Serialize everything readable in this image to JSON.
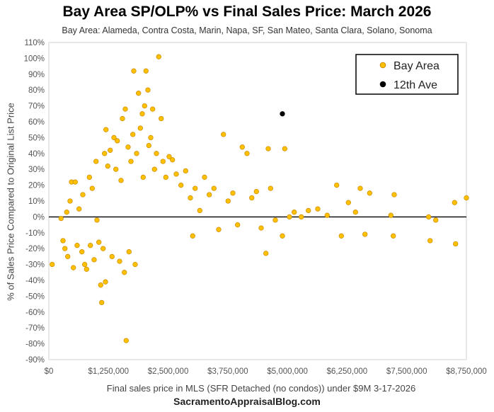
{
  "chart_data": {
    "type": "scatter",
    "title": "Bay Area SP/OLP% vs Final Sales Price: March 2026",
    "subtitle": "Bay Area: Alameda, Contra Costa, Marin, Napa, SF, San Mateo, Santa Clara, Solano, Sonoma",
    "xlabel": "Final sales price in MLS (SFR Detached (no condos)) under $9M 3-17-2026",
    "ylabel": "% of Sales Price Compared to Original List Price",
    "footer": "SacramentoAppraisalBlog.com",
    "xlim": [
      0,
      8850000
    ],
    "ylim": [
      -90,
      110
    ],
    "x_ticks": [
      "$0",
      "$1,250,000",
      "$2,500,000",
      "$3,750,000",
      "$5,000,000",
      "$6,250,000",
      "$7,500,000",
      "$8,750,000"
    ],
    "y_ticks": [
      "110%",
      "100%",
      "90%",
      "80%",
      "70%",
      "60%",
      "50%",
      "40%",
      "30%",
      "20%",
      "10%",
      "0%",
      "-10%",
      "-20%",
      "-30%",
      "-40%",
      "-50%",
      "-60%",
      "-70%",
      "-80%",
      "-90%"
    ],
    "grid": false,
    "zero_line": true,
    "legend_position": "top-right",
    "series": [
      {
        "name": "Bay Area",
        "color": "#FFC000",
        "edge_color": "#C98A00",
        "points": [
          [
            70000,
            -30
          ],
          [
            260000,
            -1
          ],
          [
            300000,
            -15
          ],
          [
            340000,
            -20
          ],
          [
            380000,
            3
          ],
          [
            400000,
            -25
          ],
          [
            450000,
            10
          ],
          [
            480000,
            22
          ],
          [
            520000,
            -32
          ],
          [
            560000,
            22
          ],
          [
            600000,
            -18
          ],
          [
            640000,
            5
          ],
          [
            700000,
            -22
          ],
          [
            720000,
            14
          ],
          [
            760000,
            -30
          ],
          [
            800000,
            -33
          ],
          [
            860000,
            25
          ],
          [
            880000,
            -18
          ],
          [
            920000,
            18
          ],
          [
            960000,
            -27
          ],
          [
            1000000,
            35
          ],
          [
            1020000,
            -2
          ],
          [
            1060000,
            -16
          ],
          [
            1100000,
            -43
          ],
          [
            1120000,
            -54
          ],
          [
            1150000,
            -20
          ],
          [
            1180000,
            40
          ],
          [
            1200000,
            -41
          ],
          [
            1210000,
            55
          ],
          [
            1250000,
            32
          ],
          [
            1300000,
            42
          ],
          [
            1340000,
            -25
          ],
          [
            1380000,
            50
          ],
          [
            1420000,
            30
          ],
          [
            1450000,
            48
          ],
          [
            1500000,
            -28
          ],
          [
            1530000,
            23
          ],
          [
            1560000,
            62
          ],
          [
            1600000,
            -35
          ],
          [
            1620000,
            68
          ],
          [
            1640000,
            -78
          ],
          [
            1680000,
            44
          ],
          [
            1700000,
            -22
          ],
          [
            1740000,
            35
          ],
          [
            1780000,
            52
          ],
          [
            1800000,
            92
          ],
          [
            1830000,
            -30
          ],
          [
            1860000,
            40
          ],
          [
            1900000,
            78
          ],
          [
            1940000,
            56
          ],
          [
            1980000,
            65
          ],
          [
            2000000,
            25
          ],
          [
            2030000,
            70
          ],
          [
            2060000,
            92
          ],
          [
            2100000,
            80
          ],
          [
            2120000,
            45
          ],
          [
            2160000,
            50
          ],
          [
            2200000,
            68
          ],
          [
            2240000,
            30
          ],
          [
            2280000,
            40
          ],
          [
            2330000,
            101
          ],
          [
            2380000,
            62
          ],
          [
            2420000,
            35
          ],
          [
            2480000,
            25
          ],
          [
            2550000,
            38
          ],
          [
            2620000,
            36
          ],
          [
            2700000,
            27
          ],
          [
            2800000,
            20
          ],
          [
            2900000,
            29
          ],
          [
            3000000,
            12
          ],
          [
            3050000,
            -12
          ],
          [
            3100000,
            18
          ],
          [
            3200000,
            4
          ],
          [
            3300000,
            25
          ],
          [
            3400000,
            14
          ],
          [
            3500000,
            18
          ],
          [
            3600000,
            -8
          ],
          [
            3700000,
            52
          ],
          [
            3800000,
            10
          ],
          [
            3900000,
            15
          ],
          [
            4000000,
            -5
          ],
          [
            4100000,
            44
          ],
          [
            4200000,
            40
          ],
          [
            4300000,
            12
          ],
          [
            4400000,
            16
          ],
          [
            4500000,
            -7
          ],
          [
            4600000,
            -23
          ],
          [
            4650000,
            43
          ],
          [
            4700000,
            18
          ],
          [
            4800000,
            -2
          ],
          [
            4950000,
            -12
          ],
          [
            5000000,
            43
          ],
          [
            5100000,
            0
          ],
          [
            5200000,
            3
          ],
          [
            5350000,
            0
          ],
          [
            5500000,
            4
          ],
          [
            5700000,
            5
          ],
          [
            5900000,
            1
          ],
          [
            6100000,
            20
          ],
          [
            6200000,
            -12
          ],
          [
            6350000,
            9
          ],
          [
            6500000,
            3
          ],
          [
            6600000,
            18
          ],
          [
            6700000,
            -11
          ],
          [
            6800000,
            15
          ],
          [
            7250000,
            1
          ],
          [
            7300000,
            -12
          ],
          [
            7320000,
            14
          ],
          [
            8050000,
            0
          ],
          [
            8080000,
            -15
          ],
          [
            8200000,
            -2
          ],
          [
            8600000,
            9
          ],
          [
            8620000,
            -17
          ],
          [
            8850000,
            12
          ]
        ]
      },
      {
        "name": "12th Ave",
        "color": "#000000",
        "edge_color": "#000000",
        "points": [
          [
            4950000,
            65
          ]
        ]
      }
    ]
  }
}
